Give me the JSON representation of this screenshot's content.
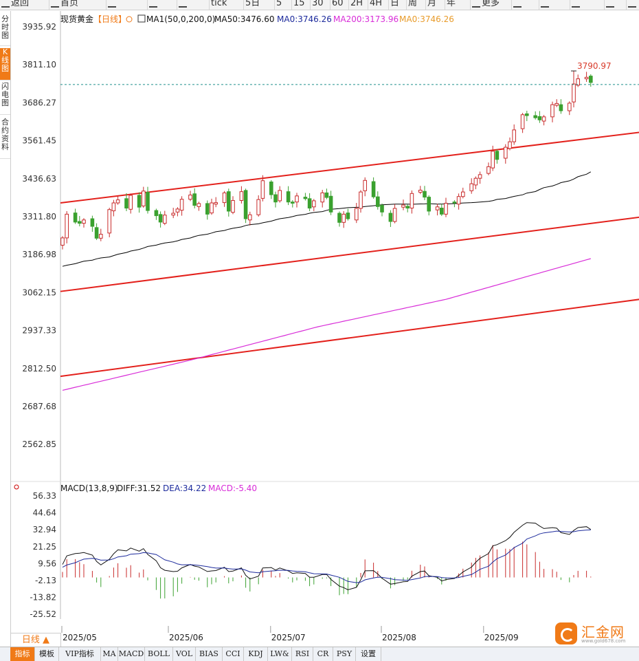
{
  "toolbar": {
    "items": [
      {
        "label": "返回",
        "icon": "back-arrow-icon"
      },
      {
        "label": "首页",
        "icon": "home-icon"
      },
      {
        "label": "",
        "icon": "refresh-icon"
      },
      {
        "label": "",
        "icon": "bar-chart-icon"
      },
      {
        "label": "",
        "icon": "candlestick-icon"
      },
      {
        "label": "tick",
        "icon": ""
      },
      {
        "label": "5日",
        "icon": ""
      },
      {
        "label": "5",
        "icon": ""
      },
      {
        "label": "15",
        "icon": ""
      },
      {
        "label": "30",
        "icon": ""
      },
      {
        "label": "60",
        "icon": ""
      },
      {
        "label": "2H",
        "icon": ""
      },
      {
        "label": "4H",
        "icon": ""
      },
      {
        "label": "日",
        "icon": ""
      },
      {
        "label": "周",
        "icon": ""
      },
      {
        "label": "月",
        "icon": ""
      },
      {
        "label": "年",
        "icon": ""
      },
      {
        "label": "更多",
        "icon": "menu-icon"
      },
      {
        "label": "",
        "icon": "function-icon"
      },
      {
        "label": "",
        "icon": "zoom-out-icon"
      },
      {
        "label": "",
        "icon": "zoom-in-icon"
      },
      {
        "label": "",
        "icon": "draw-pen-icon"
      },
      {
        "label": "",
        "icon": "fullscreen-icon"
      }
    ]
  },
  "side_tabs": [
    {
      "label": "分时图",
      "active": false
    },
    {
      "label": "K线图",
      "active": true
    },
    {
      "label": "闪电图",
      "active": false
    },
    {
      "label": "合约资料",
      "active": false
    }
  ],
  "header": {
    "symbol": "现货黄金",
    "period": "【日线】",
    "indicator": "MA1(50,0,200,0)",
    "ma50_label": "MA50:3476.60",
    "ma0_label": "MA0:3746.26",
    "ma200_label": "MA200:3173.96",
    "ma0_label_2": "MA0:3746.26"
  },
  "macd_header": {
    "name": "MACD(13,8,9)",
    "diff_label": "DIFF:31.52",
    "dea_label": "DEA:34.22",
    "macd_label": "MACD:-5.40"
  },
  "period_button": {
    "label": "日线 ▲"
  },
  "bottom_tabs": [
    {
      "label": "指标",
      "active": true
    },
    {
      "label": "模板",
      "active": false
    },
    {
      "label": "VIP指标",
      "active": false
    },
    {
      "label": "MA",
      "active": false
    },
    {
      "label": "MACD",
      "active": false
    },
    {
      "label": "BOLL",
      "active": false
    },
    {
      "label": "VOL",
      "active": false
    },
    {
      "label": "BIAS",
      "active": false
    },
    {
      "label": "CCI",
      "active": false
    },
    {
      "label": "KDJ",
      "active": false
    },
    {
      "label": "LW&",
      "active": false
    },
    {
      "label": "RSI",
      "active": false
    },
    {
      "label": "CR",
      "active": false
    },
    {
      "label": "PSY",
      "active": false
    },
    {
      "label": "设置",
      "active": false
    }
  ],
  "logo": {
    "name": "汇金网",
    "url": "www.gold678.com"
  },
  "colors": {
    "up": "#c82a2a",
    "down": "#3aa12f",
    "ma50": "#000000",
    "ma200": "#d82bd8",
    "channel": "#e3201b",
    "accent": "#f07a17",
    "dea": "#1c2a9c",
    "macd_magenta": "#d82bd8",
    "last_price_line": "#1f8f8a"
  },
  "chart_data": [
    {
      "type": "candlestick",
      "symbol": "现货黄金",
      "y_ticks": [
        "3935.92",
        "3811.10",
        "3686.27",
        "3561.45",
        "3436.63",
        "3311.80",
        "3186.98",
        "3062.15",
        "2937.33",
        "2812.50",
        "2687.68",
        "2562.85"
      ],
      "x_ticks": [
        "2025/05",
        "2025/06",
        "2025/07",
        "2025/08",
        "2025/09"
      ],
      "ylim": [
        2500,
        3960
      ],
      "high_annotation": "3790.97",
      "last_price": 3746.26,
      "seed": [
        3242.0,
        3320.0,
        3294.0,
        3290.0,
        3301.0,
        3280.0,
        3241.0,
        3254.0,
        3335.0,
        3357.0,
        3367.0,
        3340.0,
        3382.0,
        3343.0,
        3396.0,
        3332.0,
        3315.0,
        3294.0,
        3317.0,
        3323.0,
        3337.0,
        3369.0,
        3383.0,
        3349.0,
        3355.0,
        3320.0,
        3357.0,
        3358.0,
        3390.0,
        3330.0,
        3365.0,
        3394.0,
        3305.0,
        3318.0,
        3368.0,
        3430.0,
        3384.0,
        3360.0,
        3398.0,
        3360.0,
        3356.0,
        3380.0,
        3371.0,
        3340.0,
        3364.0,
        3390.0,
        3375.0,
        3327.0,
        3293.0,
        3320.0,
        3305.0,
        3339.0,
        3393.0,
        3431.0,
        3377.0,
        3345.0,
        3327.0,
        3296.0,
        3339.0,
        3350.0,
        3340.0,
        3388.0,
        3399.0,
        3376.0,
        3330.0,
        3344.0,
        3320.0,
        3356.0,
        3357.0,
        3378.0,
        3393.0,
        3420.0,
        3438.0,
        3450.0,
        3476.0,
        3527.0,
        3500.0,
        3540.0,
        3558.0,
        3597.0,
        3647.0,
        3644.0,
        3637.0,
        3630.0,
        3640.0,
        3680.0,
        3684.0,
        3660.0,
        3685.0,
        3748.0,
        3765.0,
        3770.0,
        3753.0
      ]
    },
    {
      "type": "line",
      "name": "MA50",
      "ma_window": 50,
      "last_value": 3476.6
    },
    {
      "type": "line",
      "name": "MA200",
      "last_value": 3173.96,
      "x_days": [
        0,
        30,
        60,
        90,
        124
      ],
      "y": [
        2741,
        2840,
        2950,
        3040,
        3173.96
      ]
    },
    {
      "type": "line",
      "name": "channel",
      "lines": [
        {
          "x_days": [
            0,
            136
          ],
          "y": [
            3357,
            3590
          ]
        },
        {
          "x_days": [
            0,
            136
          ],
          "y": [
            3066,
            3311
          ]
        },
        {
          "x_days": [
            0,
            136
          ],
          "y": [
            2787,
            3041
          ]
        }
      ]
    },
    {
      "type": "bar+line",
      "name": "MACD(13,8,9)",
      "y_ticks": [
        "56.33",
        "44.64",
        "32.94",
        "21.25",
        "9.56",
        "-2.13",
        "-13.82",
        "-25.52"
      ],
      "ylim": [
        -37,
        60
      ],
      "DIFF": 31.52,
      "DEA": 34.22,
      "MACD": -5.4,
      "ema_fast": 8,
      "ema_slow": 13,
      "signal": 9
    }
  ]
}
